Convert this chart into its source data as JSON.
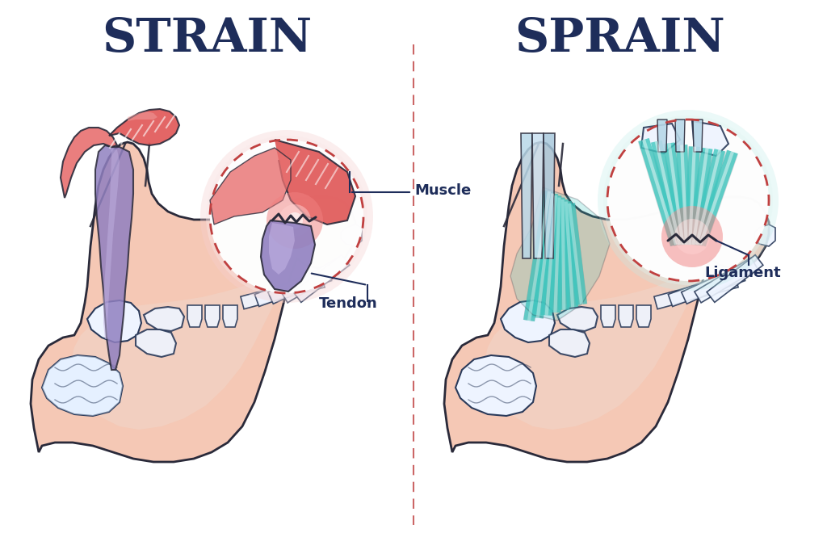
{
  "background_color": "#ffffff",
  "title_strain": "STRAIN",
  "title_sprain": "SPRAIN",
  "title_color": "#1e2d5a",
  "title_fontsize": 42,
  "label_muscle": "Muscle",
  "label_tendon": "Tendon",
  "label_ligament": "Ligament",
  "label_color": "#1e2d5a",
  "label_fontsize": 13,
  "skin_color": "#f5c8b5",
  "skin_color2": "#f0d5c8",
  "skin_edge_color": "#2a2a3a",
  "bone_color": "#ddeeff",
  "bone_color2": "#eef4ff",
  "bone_edge_color": "#2a3a5a",
  "muscle_color": "#e05555",
  "muscle_color2": "#e87070",
  "muscle_highlight": "#f0a0a0",
  "muscle_edge_color": "#2a2a3a",
  "tendon_color": "#9080c0",
  "tendon_color2": "#b0a0d8",
  "tendon_edge_color": "#2a2a3a",
  "ligament_color": "#40c8c0",
  "ligament_color2": "#70ddd8",
  "ligament_color3": "#a8ece8",
  "ligament_edge_color": "#2a2a3a",
  "injury_glow": "#e89090",
  "circle_dash_color": "#c04040",
  "divider_color": "#c04040",
  "annotation_line_color": "#1e2d5a",
  "outline_color": "#2a2a3a"
}
